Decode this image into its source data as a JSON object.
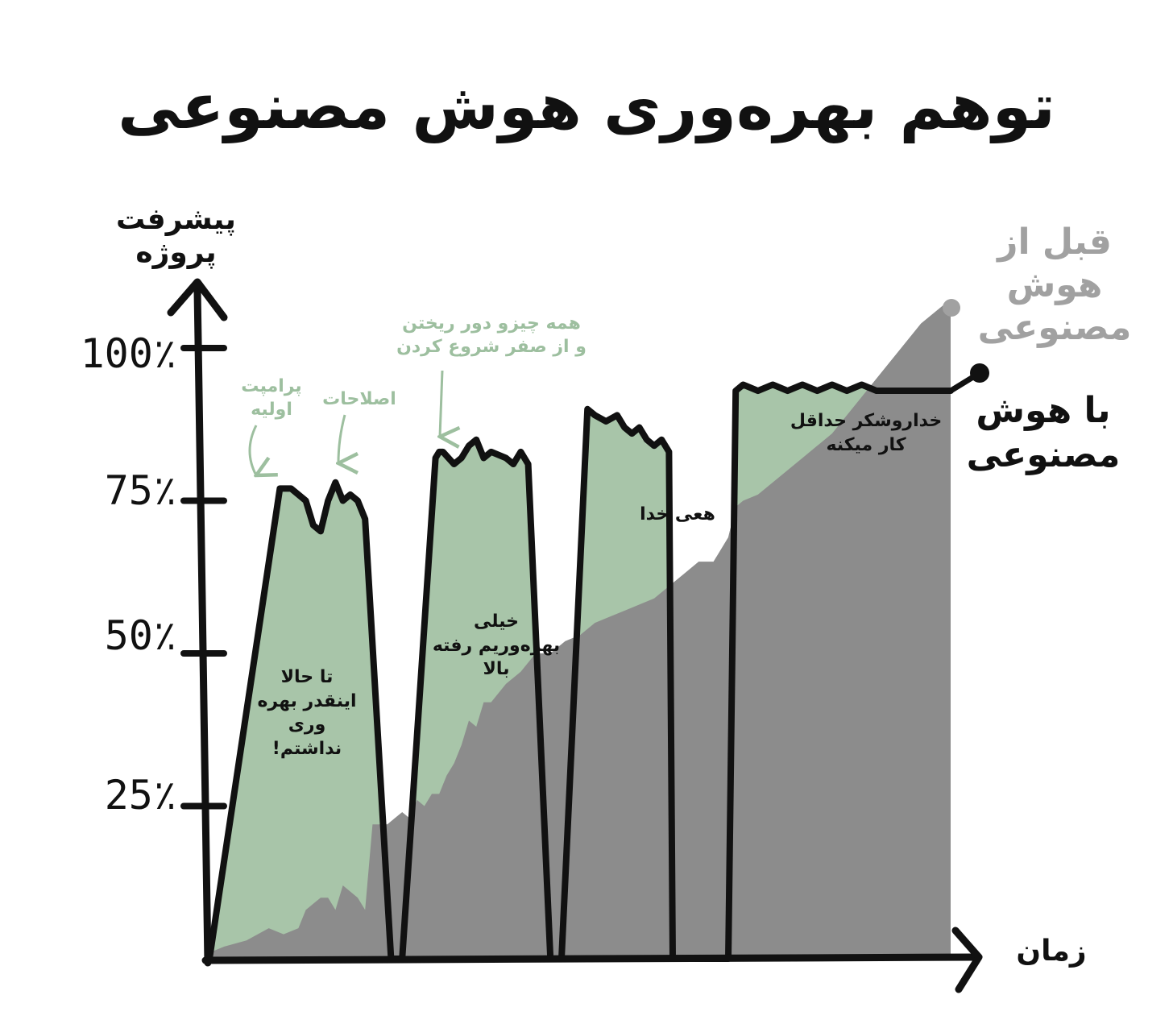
{
  "title": "توهم بهره‌وری هوش مصنوعی",
  "colors": {
    "background": "#ffffff",
    "before_ai_area": "#8c8c8c",
    "with_ai_area": "#a8c5a9",
    "axis_line": "#111111",
    "annotation_green": "#9dbf9f",
    "legend_gray": "#a1a1a1"
  },
  "chart_data": {
    "type": "area",
    "title": "توهم بهره‌وری هوش مصنوعی",
    "ylabel": "پیشرفت پروژه",
    "xlabel": "زمان",
    "y_ticks": [
      "25٪",
      "50٪",
      "75٪",
      "100٪"
    ],
    "y_tick_values": [
      25,
      50,
      75,
      100
    ],
    "ylim": [
      0,
      115
    ],
    "xlim": [
      0,
      100
    ],
    "grid": false,
    "legend_position": "right",
    "series": [
      {
        "name": "قبل از هوش مصنوعی",
        "x": [
          0,
          2,
          5,
          8,
          10,
          12,
          13,
          14,
          15,
          16,
          17,
          18,
          19,
          20,
          21,
          22,
          24,
          25,
          26,
          27,
          28,
          29,
          30,
          31,
          32,
          33,
          34,
          35,
          36,
          37,
          38,
          40,
          42,
          44,
          46,
          48,
          50,
          52,
          54,
          56,
          58,
          60,
          62,
          64,
          66,
          68,
          70,
          71,
          72,
          74,
          76,
          78,
          80,
          82,
          84,
          86,
          88,
          90,
          92,
          94,
          96,
          98,
          99,
          100
        ],
        "values": [
          1,
          2,
          3,
          5,
          4,
          5,
          8,
          9,
          10,
          10,
          8,
          12,
          11,
          10,
          8,
          22,
          22,
          23,
          24,
          23,
          26,
          25,
          27,
          27,
          30,
          32,
          35,
          39,
          38,
          42,
          42,
          45,
          47,
          50,
          50,
          52,
          53,
          55,
          56,
          57,
          58,
          59,
          61,
          63,
          65,
          65,
          69,
          74,
          75,
          76,
          78,
          80,
          82,
          84,
          86,
          89,
          92,
          95,
          98,
          101,
          104,
          106,
          107,
          108
        ]
      },
      {
        "name": "با هوش مصنوعی",
        "x": [
          0,
          9.5,
          11,
          13,
          14,
          15,
          16,
          17,
          18,
          19,
          20,
          21,
          24.5,
          26,
          30.5,
          31,
          31.5,
          33,
          34,
          35,
          36,
          37,
          38,
          40,
          41,
          42,
          43,
          46,
          47.5,
          51,
          52,
          53.5,
          55,
          56,
          57,
          58,
          59,
          60,
          61,
          62,
          62.5,
          65,
          70,
          71,
          72,
          74,
          76,
          78,
          80,
          82,
          84,
          86,
          88,
          90,
          92,
          94,
          96,
          98,
          100
        ],
        "values": [
          0,
          77,
          77,
          75,
          71,
          70,
          75,
          78,
          75,
          76,
          75,
          72,
          0,
          0,
          82,
          83,
          83,
          81,
          82,
          84,
          85,
          82,
          83,
          82,
          81,
          83,
          81,
          0,
          0,
          90,
          89,
          88,
          89,
          87,
          86,
          87,
          85,
          84,
          85,
          83,
          0,
          0,
          0,
          93,
          94,
          93,
          94,
          93,
          94,
          93,
          94,
          93,
          94,
          93,
          93,
          93,
          93,
          93,
          93
        ]
      }
    ],
    "annotations": [
      {
        "text": "پرامپت اولیه",
        "x": 12,
        "y": 77
      },
      {
        "text": "اصلاحات",
        "x": 18,
        "y": 78
      },
      {
        "text": "همه چیزو دور ریختن و از صفر شروع کردن",
        "x": 31,
        "y": 83
      },
      {
        "text": "تا حالا اینقدر بهره وری نداشتم!",
        "x": 14,
        "y": 40
      },
      {
        "text": "خیلی بهره‌وریم رفته بالا",
        "x": 39,
        "y": 50
      },
      {
        "text": "هعی خدا",
        "x": 58,
        "y": 62
      },
      {
        "text": "خداروشکر حداقل کار میکنه",
        "x": 85,
        "y": 87
      }
    ]
  },
  "labels": {
    "legend_before": "قبل از هوش مصنوعی",
    "legend_with": "با هوش مصنوعی",
    "annot_first_prompt": "پرامپت اولیه",
    "annot_fixes": "اصلاحات",
    "annot_restart": "همه چیزو دور ریختن و از صفر شروع کردن",
    "inside_1": "تا حالا اینقدر بهره وری نداشتم!",
    "inside_2": "خیلی بهره‌وریم رفته بالا",
    "inside_3": "هعی خدا",
    "inside_4": "خداروشکر حداقل کار میکنه"
  }
}
